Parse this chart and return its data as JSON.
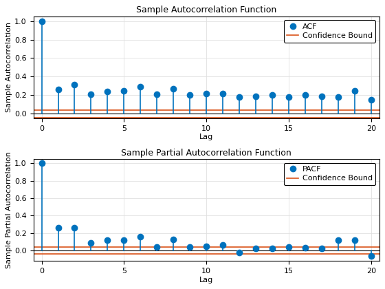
{
  "acf_values": [
    1.0,
    0.26,
    0.31,
    0.21,
    0.24,
    0.25,
    0.29,
    0.21,
    0.27,
    0.2,
    0.22,
    0.22,
    0.18,
    0.19,
    0.2,
    0.18,
    0.2,
    0.19,
    0.18,
    0.25,
    0.15
  ],
  "pacf_values": [
    1.0,
    0.26,
    0.26,
    0.09,
    0.12,
    0.12,
    0.16,
    0.04,
    0.13,
    0.04,
    0.05,
    0.06,
    -0.02,
    0.02,
    0.02,
    0.04,
    0.03,
    0.02,
    0.12,
    0.12,
    -0.06
  ],
  "lags": [
    0,
    1,
    2,
    3,
    4,
    5,
    6,
    7,
    8,
    9,
    10,
    11,
    12,
    13,
    14,
    15,
    16,
    17,
    18,
    19,
    20
  ],
  "conf_bound_upper": 0.04,
  "conf_bound_lower": -0.04,
  "acf_title": "Sample Autocorrelation Function",
  "pacf_title": "Sample Partial Autocorrelation Function",
  "xlabel": "Lag",
  "acf_ylabel": "Sample Autocorrelation",
  "pacf_ylabel": "Sample Partial Autocorrelation",
  "acf_legend": "ACF",
  "pacf_legend": "PACF",
  "conf_legend": "Confidence Bound",
  "stem_color": "#0072BD",
  "conf_color": "#D95319",
  "baseline_color": "#000000",
  "marker_size": 6,
  "stem_linewidth": 1.2,
  "conf_linewidth": 1.2,
  "baseline_linewidth": 0.8,
  "ylim_acf": [
    -0.05,
    1.05
  ],
  "ylim_pacf": [
    -0.12,
    1.05
  ],
  "xlim": [
    -0.5,
    20.5
  ],
  "yticks_acf": [
    0.0,
    0.2,
    0.4,
    0.6,
    0.8,
    1.0
  ],
  "yticks_pacf": [
    0.0,
    0.2,
    0.4,
    0.6,
    0.8,
    1.0
  ],
  "xticks": [
    0,
    5,
    10,
    15,
    20
  ],
  "bg_color": "#FFFFFF",
  "grid_color": "#E0E0E0",
  "title_fontsize": 9,
  "label_fontsize": 8,
  "tick_fontsize": 8,
  "legend_fontsize": 8
}
